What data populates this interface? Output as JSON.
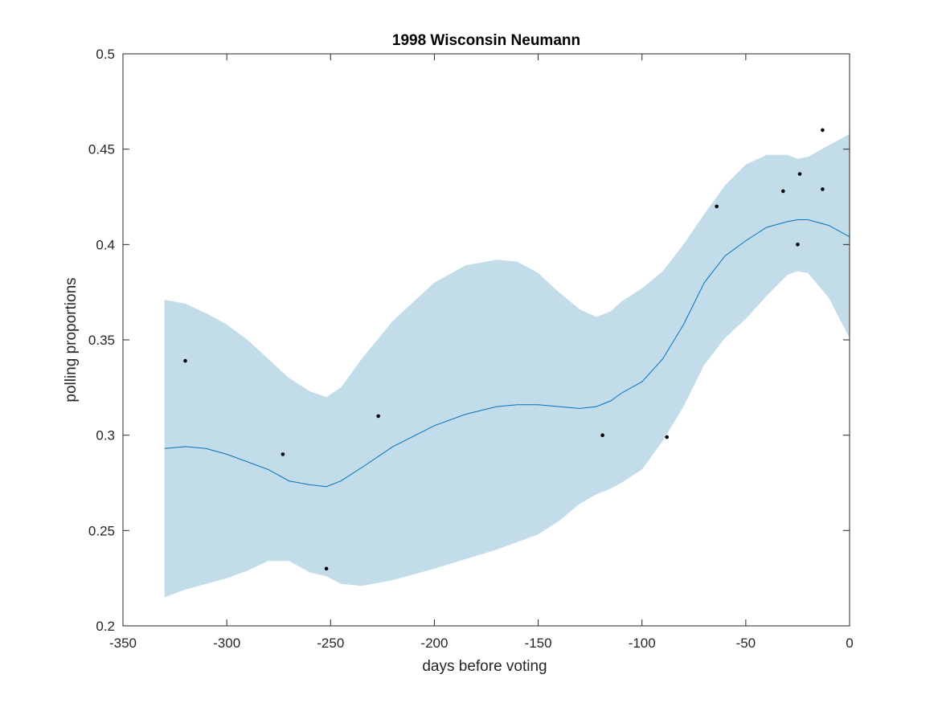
{
  "chart_data": {
    "type": "line",
    "title": "1998 Wisconsin Neumann",
    "xlabel": "days before voting",
    "ylabel": "polling proportions",
    "xlim": [
      -350,
      0
    ],
    "ylim": [
      0.2,
      0.5
    ],
    "x_ticks": [
      -350,
      -300,
      -250,
      -200,
      -150,
      -100,
      -50,
      0
    ],
    "x_tick_labels": [
      "-350",
      "-300",
      "-250",
      "-200",
      "-150",
      "-100",
      "-50",
      "0"
    ],
    "y_ticks": [
      0.2,
      0.25,
      0.3,
      0.35,
      0.4,
      0.45,
      0.5
    ],
    "y_tick_labels": [
      "0.2",
      "0.25",
      "0.3",
      "0.35",
      "0.4",
      "0.45",
      "0.5"
    ],
    "grid": false,
    "colors": {
      "band": "#c2dcea",
      "line": "#0072bd",
      "points": "#000000",
      "axes": "#262626"
    },
    "series": [
      {
        "kind": "confidence_band",
        "x": [
          -330,
          -320,
          -310,
          -300,
          -290,
          -280,
          -270,
          -260,
          -252,
          -245,
          -235,
          -220,
          -200,
          -185,
          -170,
          -160,
          -150,
          -140,
          -130,
          -122,
          -115,
          -110,
          -100,
          -90,
          -80,
          -70,
          -60,
          -50,
          -40,
          -30,
          -25,
          -20,
          -10,
          0
        ],
        "upper": [
          0.371,
          0.369,
          0.364,
          0.358,
          0.35,
          0.34,
          0.33,
          0.323,
          0.32,
          0.325,
          0.34,
          0.36,
          0.38,
          0.389,
          0.392,
          0.391,
          0.385,
          0.375,
          0.366,
          0.362,
          0.365,
          0.37,
          0.377,
          0.386,
          0.4,
          0.416,
          0.431,
          0.442,
          0.447,
          0.447,
          0.445,
          0.446,
          0.452,
          0.458
        ],
        "lower": [
          0.215,
          0.219,
          0.222,
          0.225,
          0.229,
          0.234,
          0.234,
          0.228,
          0.226,
          0.222,
          0.221,
          0.224,
          0.23,
          0.235,
          0.24,
          0.244,
          0.248,
          0.255,
          0.264,
          0.269,
          0.272,
          0.275,
          0.282,
          0.297,
          0.315,
          0.337,
          0.351,
          0.361,
          0.373,
          0.384,
          0.386,
          0.385,
          0.372,
          0.351
        ]
      },
      {
        "kind": "line",
        "x": [
          -330,
          -320,
          -310,
          -300,
          -290,
          -280,
          -270,
          -260,
          -252,
          -245,
          -235,
          -220,
          -200,
          -185,
          -170,
          -160,
          -150,
          -140,
          -130,
          -122,
          -115,
          -110,
          -100,
          -90,
          -80,
          -70,
          -60,
          -50,
          -40,
          -30,
          -25,
          -20,
          -10,
          0
        ],
        "y": [
          0.293,
          0.294,
          0.293,
          0.29,
          0.286,
          0.282,
          0.276,
          0.274,
          0.273,
          0.276,
          0.283,
          0.294,
          0.305,
          0.311,
          0.315,
          0.316,
          0.316,
          0.315,
          0.314,
          0.315,
          0.318,
          0.322,
          0.328,
          0.34,
          0.358,
          0.38,
          0.394,
          0.402,
          0.409,
          0.412,
          0.413,
          0.413,
          0.41,
          0.404
        ]
      },
      {
        "kind": "scatter",
        "x": [
          -320,
          -273,
          -252,
          -227,
          -119,
          -88,
          -64,
          -32,
          -25,
          -24,
          -13,
          -13
        ],
        "y": [
          0.339,
          0.29,
          0.23,
          0.31,
          0.3,
          0.299,
          0.42,
          0.428,
          0.4,
          0.437,
          0.46,
          0.429
        ]
      }
    ]
  }
}
